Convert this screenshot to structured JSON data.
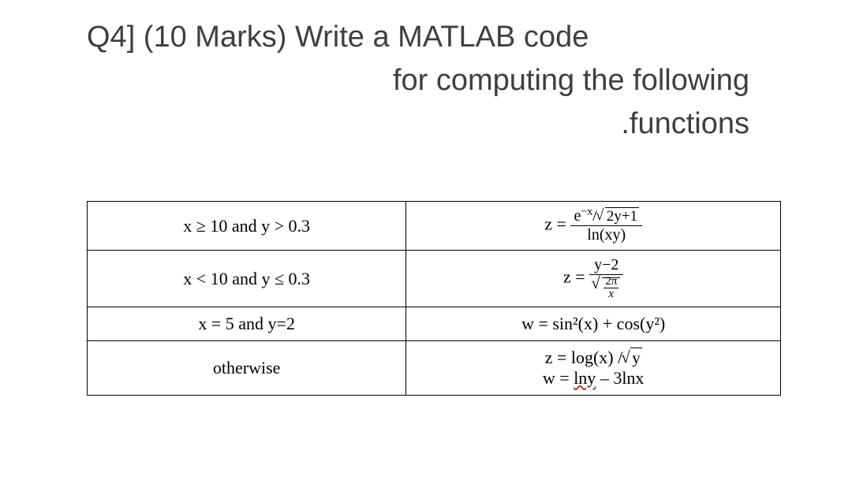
{
  "heading": {
    "line1": "Q4] (10 Marks) Write a MATLAB code",
    "line2": "for computing the following",
    "line3": ".functions"
  },
  "table": {
    "rows": [
      {
        "condition": "x ≥ 10  and y > 0.3",
        "formula_label": "z =",
        "numerator_e": "e",
        "numerator_exp_prefix": "−x",
        "numerator_slash": "/",
        "numerator_sqrt_inner": "2y+1",
        "denominator": "ln(xy)"
      },
      {
        "condition": "x < 10  and y ≤  0.3",
        "formula_label": "z =",
        "numerator": "y−2",
        "den_sqrt_num": "2π",
        "den_sqrt_den": "x"
      },
      {
        "condition": "x = 5 and y=2",
        "formula": "w = sin²(x) + cos(y²)"
      },
      {
        "condition": "otherwise",
        "line1_pre": "z = log(x) /",
        "line1_sqrt": "y",
        "line2_pre": "w = ",
        "line2_red": "lny",
        "line2_post": " – 3lnx"
      }
    ]
  },
  "colors": {
    "text": "#3c4043",
    "table_text": "#000000",
    "border": "#000000",
    "background": "#ffffff",
    "spellcheck": "#d93025"
  }
}
